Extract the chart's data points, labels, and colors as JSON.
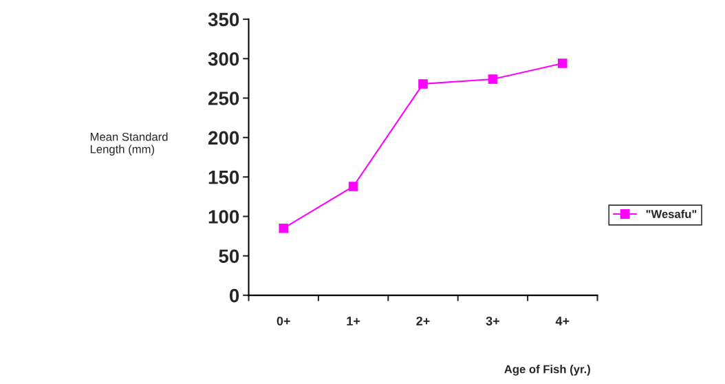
{
  "chart_data": {
    "type": "line",
    "xlabel": "Age of Fish (yr.)",
    "ylabel": "Mean Standard\nLength (mm)",
    "categories": [
      "0+",
      "1+",
      "2+",
      "3+",
      "4+"
    ],
    "series": [
      {
        "name": "\"Wesafu\"",
        "color": "#ff00ff",
        "values": [
          85,
          138,
          268,
          274,
          294
        ]
      }
    ],
    "ylim": [
      0,
      350
    ],
    "yticks": [
      0,
      50,
      100,
      150,
      200,
      250,
      300,
      350
    ],
    "marker": "square",
    "line_style": "solid",
    "legend": "right",
    "grid": false
  }
}
